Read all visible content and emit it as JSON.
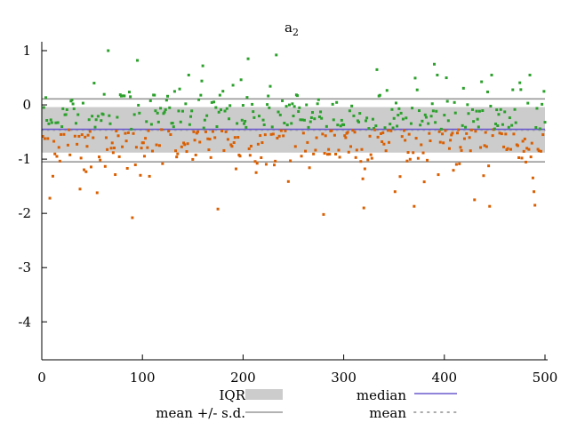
{
  "chart_data": {
    "type": "scatter",
    "title": "a",
    "title_subscript": "2",
    "xlim": [
      0,
      500
    ],
    "ylim": [
      -4.7,
      1.0
    ],
    "x_ticks": [
      0,
      100,
      200,
      300,
      400,
      500
    ],
    "y_ticks": [
      1,
      0,
      -1,
      -2,
      -3,
      -4
    ],
    "x_tick_labels": [
      "0",
      "100",
      "200",
      "300",
      "400",
      "500"
    ],
    "y_tick_labels": [
      "1",
      "0",
      "-1",
      "-2",
      "-3",
      "-4"
    ],
    "grid": false,
    "n_samples": 500,
    "median": -0.45,
    "mean": -0.47,
    "sd": 0.58,
    "iqr": [
      -0.88,
      -0.04
    ],
    "above_median_color": "#2ca02c",
    "below_median_color": "#d95f02",
    "iqr_color": "#cccccc",
    "median_color": "#6a5acd",
    "sd_line_color": "#999999",
    "mean_line_color": "#aaaaaa",
    "outliers": [
      [
        8,
        -1.72
      ],
      [
        55,
        -1.62
      ],
      [
        90,
        -2.08
      ],
      [
        66,
        1.0
      ],
      [
        95,
        0.82
      ],
      [
        175,
        -1.92
      ],
      [
        205,
        0.85
      ],
      [
        233,
        0.92
      ],
      [
        280,
        -2.02
      ],
      [
        320,
        -1.9
      ],
      [
        370,
        -1.87
      ],
      [
        390,
        0.75
      ],
      [
        430,
        -1.75
      ],
      [
        445,
        -1.87
      ],
      [
        490,
        -1.85
      ],
      [
        485,
        0.55
      ],
      [
        333,
        0.65
      ],
      [
        160,
        0.72
      ]
    ],
    "legend": {
      "iqr": "IQR",
      "median": "median",
      "mean_sd": "mean +/- s.d.",
      "mean": "mean"
    }
  }
}
